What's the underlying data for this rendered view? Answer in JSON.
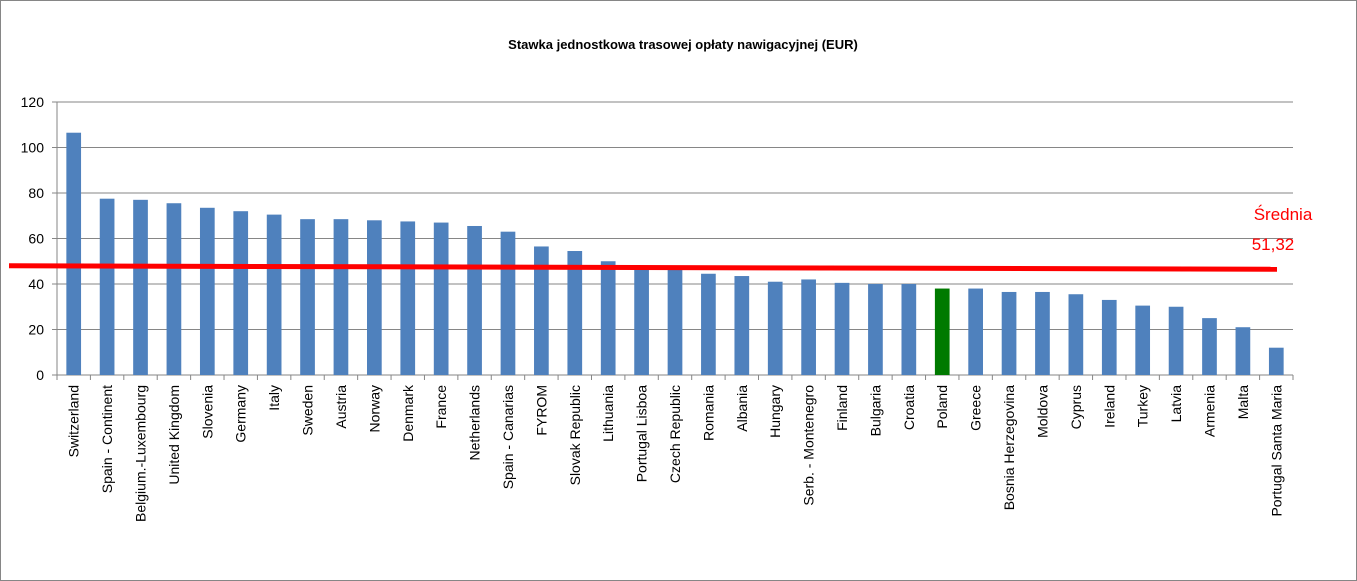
{
  "chart_data": {
    "type": "bar",
    "title": "Stawka jednostkowa trasowej opłaty nawigacyjnej (EUR)",
    "xlabel": "",
    "ylabel": "",
    "ylim": [
      0,
      120
    ],
    "yticks": [
      0,
      20,
      40,
      60,
      80,
      100,
      120
    ],
    "grid": true,
    "categories": [
      "Switzerland",
      "Spain - Continent",
      "Belgium.-Luxembourg",
      "United Kingdom",
      "Slovenia",
      "Germany",
      "Italy",
      "Sweden",
      "Austria",
      "Norway",
      "Denmark",
      "France",
      "Netherlands",
      "Spain - Canarias",
      "FYROM",
      "Slovak Republic",
      "Lithuania",
      "Portugal Lisboa",
      "Czech Republic",
      "Romania",
      "Albania",
      "Hungary",
      "Serb. - Montenegro",
      "Finland",
      "Bulgaria",
      "Croatia",
      "Poland",
      "Greece",
      "Bosnia Herzegovina",
      "Moldova",
      "Cyprus",
      "Ireland",
      "Turkey",
      "Latvia",
      "Armenia",
      "Malta",
      "Portugal Santa Maria"
    ],
    "values": [
      106.5,
      77.5,
      77,
      75.5,
      73.5,
      72,
      70.5,
      68.5,
      68.5,
      68,
      67.5,
      67,
      65.5,
      63,
      56.5,
      54.5,
      50,
      47,
      46.5,
      44.5,
      43.5,
      41,
      42,
      40.5,
      40,
      40,
      38,
      38,
      36.5,
      36.5,
      35.5,
      33,
      30.5,
      30,
      25,
      21,
      12
    ],
    "highlight_category": "Poland",
    "colors": {
      "bar": "#4F81BD",
      "highlight": "#007A00",
      "average_line": "#FF0000",
      "grid": "#868686"
    },
    "average": {
      "label_line1": "Średnia",
      "label_line2": "51,32",
      "line_start_value": 48,
      "line_end_value": 46.5
    }
  }
}
